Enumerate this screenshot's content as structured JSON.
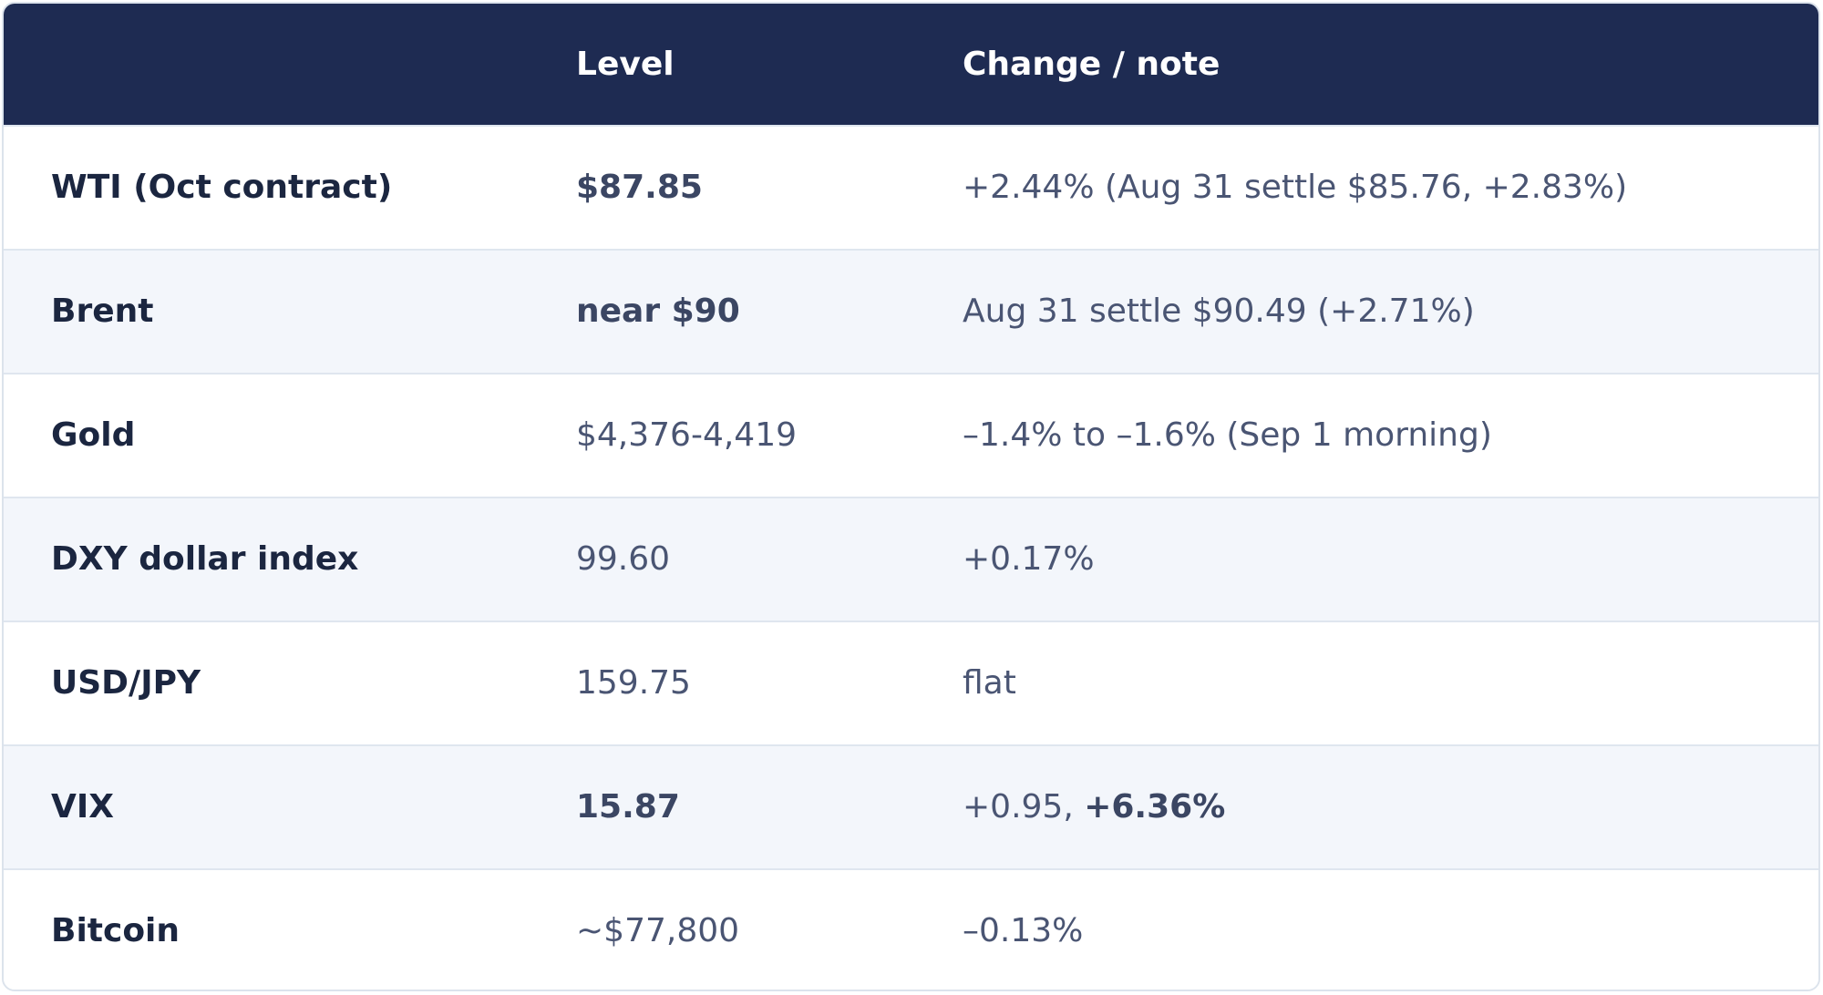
{
  "table": {
    "headers": [
      "",
      "Level",
      "Change / note"
    ],
    "rows": [
      {
        "asset": "WTI (Oct contract)",
        "level": "$87.85",
        "level_bold": true,
        "note_plain": "+2.44% (Aug 31 settle $85.76, +2.83%)",
        "note_bold": ""
      },
      {
        "asset": "Brent",
        "level": "near $90",
        "level_bold": true,
        "note_plain": "Aug 31 settle $90.49 (+2.71%)",
        "note_bold": ""
      },
      {
        "asset": "Gold",
        "level": "$4,376-4,419",
        "level_bold": false,
        "note_plain": "–1.4% to –1.6% (Sep 1 morning)",
        "note_bold": ""
      },
      {
        "asset": "DXY dollar index",
        "level": "99.60",
        "level_bold": false,
        "note_plain": "+0.17%",
        "note_bold": ""
      },
      {
        "asset": "USD/JPY",
        "level": "159.75",
        "level_bold": false,
        "note_plain": "flat",
        "note_bold": ""
      },
      {
        "asset": "VIX",
        "level": "15.87",
        "level_bold": true,
        "note_plain": "+0.95, ",
        "note_bold": "+6.36%"
      },
      {
        "asset": "Bitcoin",
        "level": "~$77,800",
        "level_bold": false,
        "note_plain": "–0.13%",
        "note_bold": ""
      }
    ]
  },
  "colors": {
    "header_bg": "#1e2b52",
    "stripe_bg": "#f3f6fb",
    "border": "#dce3ec"
  }
}
